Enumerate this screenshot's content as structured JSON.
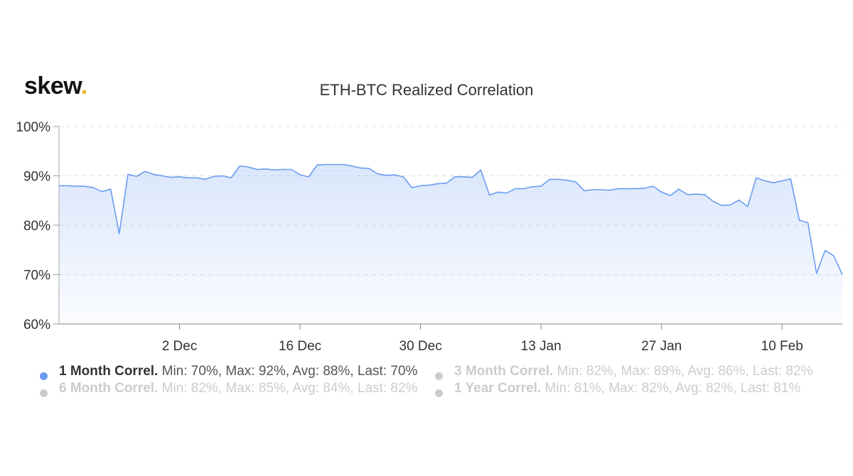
{
  "logo": {
    "text": "skew",
    "dot": "."
  },
  "chart_data": {
    "type": "area",
    "title": "ETH-BTC Realized Correlation",
    "xlabel": "",
    "ylabel": "",
    "ylim": [
      60,
      100
    ],
    "y_ticks": [
      "100%",
      "90%",
      "80%",
      "70%",
      "60%"
    ],
    "x_tick_labels": [
      "2 Dec",
      "16 Dec",
      "30 Dec",
      "13 Jan",
      "27 Jan",
      "10 Feb"
    ],
    "x_start": "2019-11-18",
    "grid": true,
    "legend_position": "bottom",
    "series": [
      {
        "name": "1 Month Correl.",
        "color": "#6b9cf0",
        "visible": true,
        "min": "70%",
        "max": "92%",
        "avg": "88%",
        "last": "70%",
        "values": [
          88.0,
          88.0,
          87.9,
          87.9,
          87.6,
          86.8,
          87.3,
          78.3,
          90.3,
          89.9,
          90.9,
          90.3,
          90.0,
          89.7,
          89.8,
          89.6,
          89.6,
          89.3,
          89.9,
          90.0,
          89.6,
          92.0,
          91.8,
          91.3,
          91.4,
          91.2,
          91.3,
          91.3,
          90.2,
          89.8,
          92.2,
          92.3,
          92.3,
          92.3,
          92.0,
          91.6,
          91.5,
          90.4,
          90.1,
          90.2,
          89.8,
          87.6,
          88.0,
          88.1,
          88.4,
          88.5,
          89.8,
          89.8,
          89.7,
          91.2,
          86.1,
          86.7,
          86.5,
          87.4,
          87.4,
          87.8,
          87.9,
          89.3,
          89.3,
          89.1,
          88.8,
          87.0,
          87.2,
          87.2,
          87.1,
          87.4,
          87.4,
          87.4,
          87.5,
          87.9,
          86.7,
          86.0,
          87.3,
          86.2,
          86.3,
          86.2,
          84.8,
          84.0,
          84.1,
          85.1,
          83.8,
          89.6,
          89.0,
          88.6,
          89.0,
          89.4,
          81.0,
          80.5,
          70.2,
          74.9,
          73.8,
          70.0
        ]
      },
      {
        "name": "3 Month Correl.",
        "color": "#cccccc",
        "visible": false,
        "min": "82%",
        "max": "89%",
        "avg": "86%",
        "last": "82%"
      },
      {
        "name": "6 Month Correl.",
        "color": "#cccccc",
        "visible": false,
        "min": "82%",
        "max": "85%",
        "avg": "84%",
        "last": "82%"
      },
      {
        "name": "1 Year Correl.",
        "color": "#cccccc",
        "visible": false,
        "min": "81%",
        "max": "82%",
        "avg": "82%",
        "last": "81%"
      }
    ]
  },
  "legend": [
    {
      "name": "1 Month Correl.",
      "stats": "Min: 70%, Max: 92%, Avg: 88%, Last: 70%"
    },
    {
      "name": "3 Month Correl.",
      "stats": "Min: 82%, Max: 89%, Avg: 86%, Last: 82%"
    },
    {
      "name": "6 Month Correl.",
      "stats": "Min: 82%, Max: 85%, Avg: 84%, Last: 82%"
    },
    {
      "name": "1 Year Correl.",
      "stats": "Min: 81%, Max: 82%, Avg: 82%, Last: 81%"
    }
  ]
}
